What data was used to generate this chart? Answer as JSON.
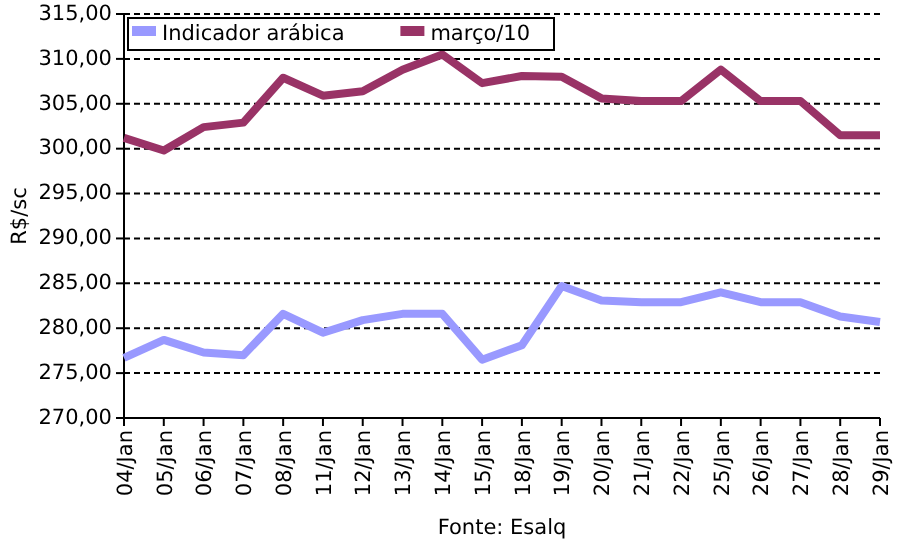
{
  "chart_data": {
    "type": "line",
    "ylabel": "R$/sc",
    "categories": [
      "04/Jan",
      "05/Jan",
      "06/Jan",
      "07/Jan",
      "08/Jan",
      "11/Jan",
      "12/Jan",
      "13/Jan",
      "14/Jan",
      "15/Jan",
      "18/Jan",
      "19/Jan",
      "20/Jan",
      "21/Jan",
      "22/Jan",
      "25/Jan",
      "26/Jan",
      "27/Jan",
      "28/Jan",
      "29/Jan"
    ],
    "series": [
      {
        "name": "Indicador arábica",
        "color": "#9999ff",
        "values": [
          276.7,
          278.7,
          277.3,
          277.0,
          281.6,
          279.5,
          280.9,
          281.6,
          281.6,
          276.5,
          278.1,
          284.7,
          283.1,
          282.9,
          282.9,
          284.0,
          282.9,
          282.9,
          281.3,
          280.7
        ]
      },
      {
        "name": "março/10",
        "color": "#993366",
        "values": [
          301.2,
          299.8,
          302.4,
          302.9,
          307.9,
          305.9,
          306.4,
          308.8,
          310.5,
          307.3,
          308.1,
          308.0,
          305.6,
          305.3,
          305.3,
          308.8,
          305.3,
          305.3,
          301.5,
          301.5
        ]
      }
    ],
    "ylim": [
      270,
      315
    ],
    "yticks": [
      {
        "value": 270,
        "label": "270,00"
      },
      {
        "value": 275,
        "label": "275,00"
      },
      {
        "value": 280,
        "label": "280,00"
      },
      {
        "value": 285,
        "label": "285,00"
      },
      {
        "value": 290,
        "label": "290,00"
      },
      {
        "value": 295,
        "label": "295,00"
      },
      {
        "value": 300,
        "label": "300,00"
      },
      {
        "value": 305,
        "label": "305,00"
      },
      {
        "value": 310,
        "label": "310,00"
      },
      {
        "value": 315,
        "label": "315,00"
      }
    ],
    "grid": "y",
    "legend": "top left",
    "line_style": "solid",
    "marker": "none",
    "annotations": [
      "Fonte: Esalq"
    ]
  }
}
